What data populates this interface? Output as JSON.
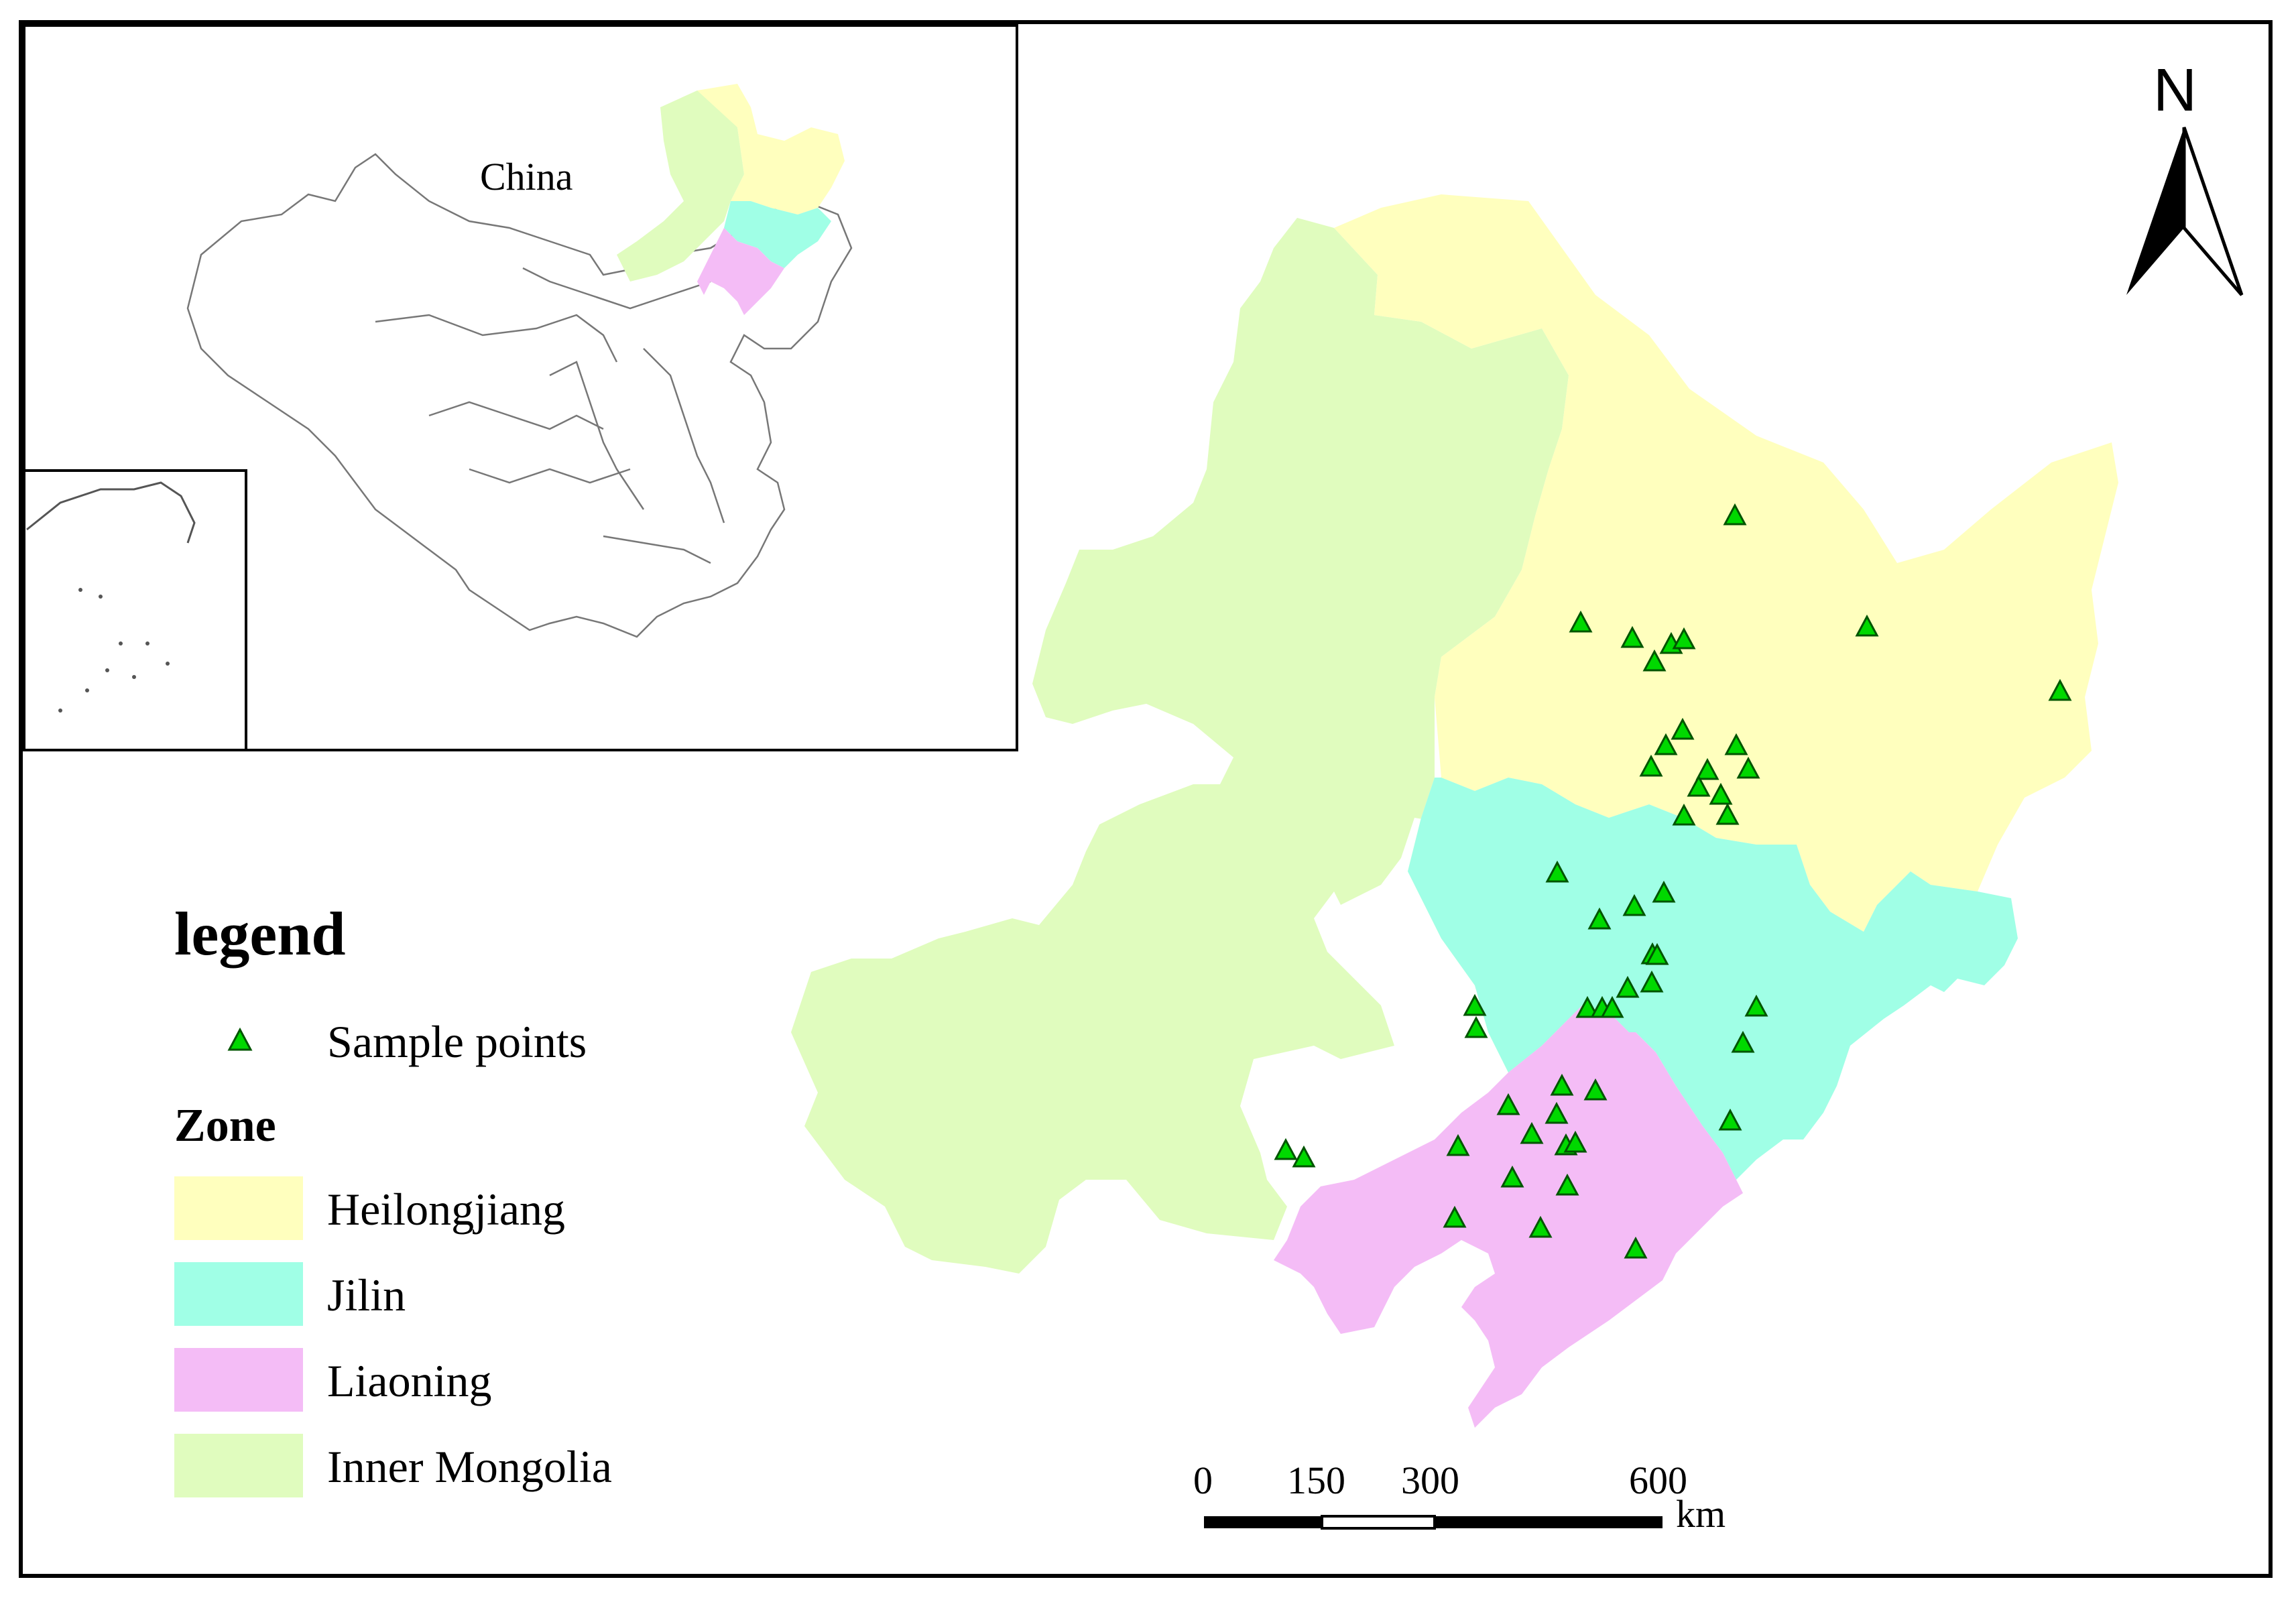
{
  "inset": {
    "label": "China"
  },
  "north_arrow": {
    "label": "N"
  },
  "legend": {
    "title": "legend",
    "sample_label": "Sample points",
    "zone_title": "Zone",
    "zones": [
      {
        "name": "Heilongjiang",
        "color": "#ffffbe"
      },
      {
        "name": "Jilin",
        "color": "#a0ffe6"
      },
      {
        "name": "Liaoning",
        "color": "#f4bcf6"
      },
      {
        "name": "Inner Mongolia",
        "color": "#e0fcbe"
      }
    ]
  },
  "scale_bar": {
    "ticks": [
      "0",
      "150",
      "300",
      "600"
    ],
    "unit": "km"
  },
  "marker_color": "#00d800",
  "sample_points_count": 47
}
